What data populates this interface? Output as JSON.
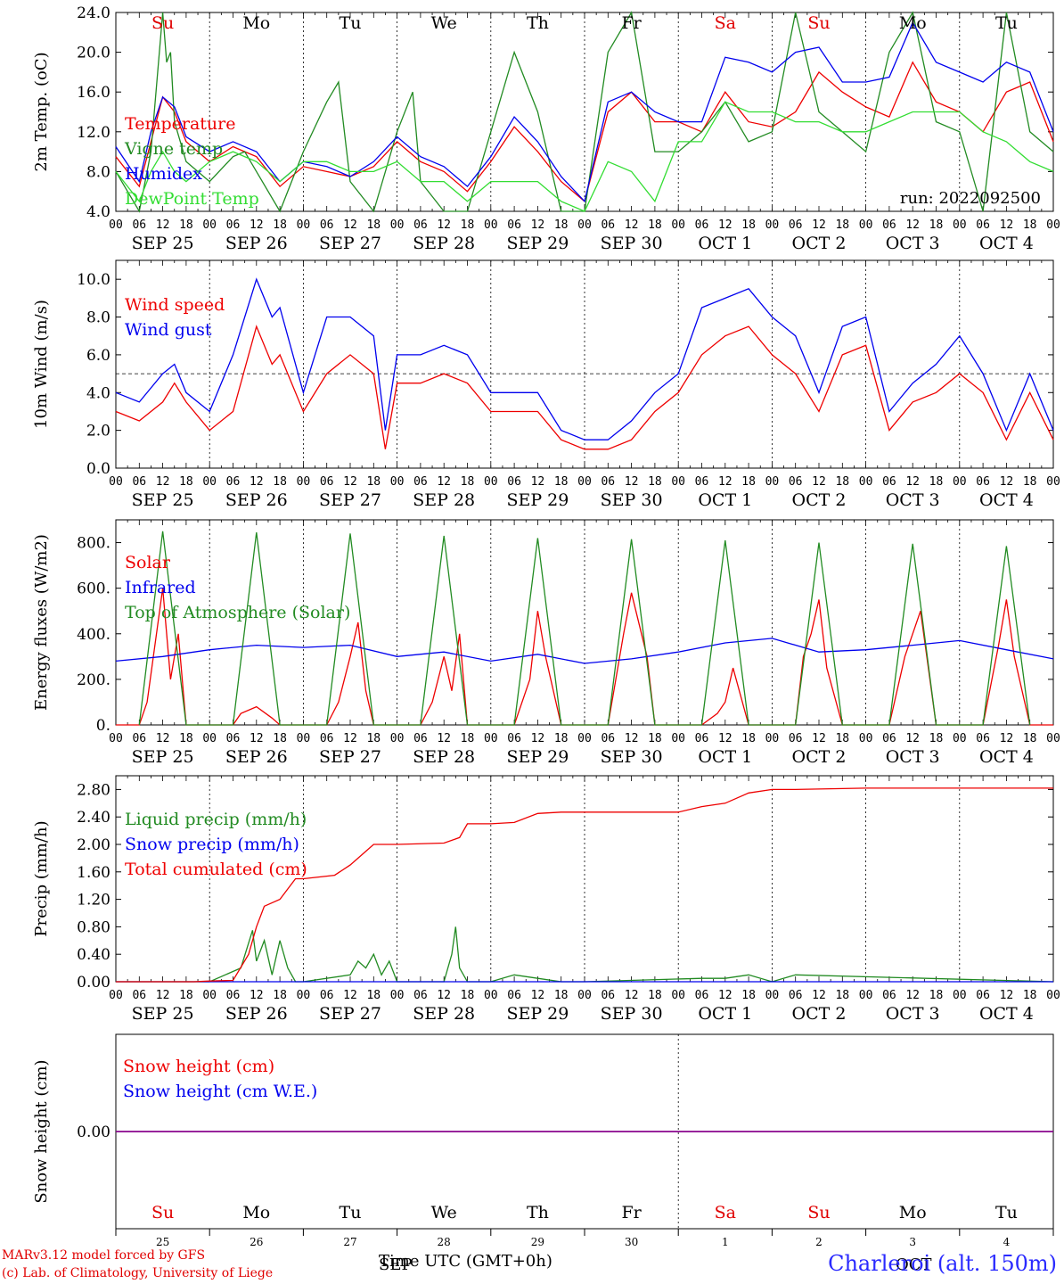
{
  "x_axis": {
    "hour_ticks": [
      "00",
      "06",
      "12",
      "18"
    ],
    "date_labels": [
      "SEP 25",
      "SEP 26",
      "SEP 27",
      "SEP 28",
      "SEP 29",
      "SEP 30",
      "OCT  1",
      "OCT  2",
      "OCT  3",
      "OCT  4"
    ],
    "weekdays": [
      "Su",
      "Mo",
      "Tu",
      "We",
      "Th",
      "Fr",
      "Sa",
      "Su",
      "Mo",
      "Tu"
    ],
    "weekday_colors": [
      "#e00000",
      "#000000",
      "#000000",
      "#000000",
      "#000000",
      "#000000",
      "#e00000",
      "#e00000",
      "#000000",
      "#000000"
    ],
    "bottom_day_numbers": [
      "25",
      "26",
      "27",
      "28",
      "29",
      "30",
      "1",
      "2",
      "3",
      "4"
    ],
    "bottom_months": [
      "SEP",
      "OCT"
    ],
    "title": "Time UTC (GMT+0h)"
  },
  "footer": {
    "line1": "MARv3.12 model forced by GFS",
    "line2": "(c) Lab. of Climatology, University of Liege",
    "station": "Charleroi (alt. 150m)"
  },
  "colors": {
    "red": "#ee0000",
    "blue": "#0000ee",
    "green": "#228b22",
    "lightgreen": "#33dd33",
    "purple": "#8b008b"
  },
  "chart_data": [
    {
      "type": "line",
      "ylabel": "2m Temp. (oC)",
      "ylim": [
        4,
        24
      ],
      "yticks": [
        "4.0",
        "8.0",
        "12.0",
        "16.0",
        "20.0",
        "24.0"
      ],
      "annotation": "run: 2022092500",
      "x_units": "hours since 2022-09-25 00 UTC",
      "series": [
        {
          "name": "Temperature",
          "color": "red",
          "x": [
            0,
            6,
            9,
            12,
            15,
            18,
            24,
            30,
            33,
            36,
            42,
            48,
            54,
            60,
            66,
            72,
            78,
            84,
            90,
            96,
            102,
            108,
            114,
            120,
            126,
            132,
            138,
            144,
            150,
            156,
            162,
            168,
            174,
            180,
            186,
            192,
            198,
            204,
            210,
            216,
            222,
            228,
            234,
            240
          ],
          "y": [
            9.5,
            6.5,
            11,
            15.5,
            14,
            11,
            9,
            10.5,
            10,
            9.5,
            6.5,
            8.5,
            8,
            7.5,
            8.5,
            11,
            9,
            8,
            6,
            9,
            12.5,
            10,
            7,
            5,
            14,
            16,
            13,
            13,
            12,
            16,
            13,
            12.5,
            14,
            18,
            16,
            14.5,
            13.5,
            19,
            15,
            14,
            12,
            16,
            17,
            11
          ]
        },
        {
          "name": "Vigne temp",
          "color": "green",
          "x": [
            0,
            6,
            9,
            12,
            13,
            14,
            15,
            18,
            24,
            30,
            33,
            36,
            42,
            48,
            54,
            57,
            60,
            66,
            72,
            76,
            78,
            84,
            90,
            96,
            102,
            108,
            114,
            120,
            126,
            132,
            138,
            144,
            150,
            156,
            162,
            168,
            174,
            180,
            186,
            192,
            198,
            204,
            210,
            216,
            222,
            228,
            234,
            240
          ],
          "y": [
            8,
            4,
            10,
            24,
            19,
            20,
            13,
            9,
            7,
            9.5,
            10,
            8,
            4,
            10,
            15,
            17,
            7,
            4,
            12,
            16,
            7,
            4,
            4,
            12,
            20,
            14,
            4,
            4,
            20,
            24,
            10,
            10,
            12,
            15,
            11,
            12,
            24,
            14,
            12,
            10,
            20,
            24,
            13,
            12,
            4,
            24,
            12,
            10
          ]
        },
        {
          "name": "Humidex",
          "color": "blue",
          "x": [
            0,
            6,
            9,
            12,
            15,
            18,
            24,
            30,
            36,
            42,
            48,
            54,
            60,
            66,
            72,
            78,
            84,
            90,
            96,
            102,
            108,
            114,
            120,
            126,
            132,
            138,
            144,
            150,
            156,
            162,
            168,
            174,
            180,
            186,
            192,
            198,
            204,
            210,
            216,
            222,
            228,
            234,
            240
          ],
          "y": [
            10.5,
            7,
            12,
            15.5,
            14.5,
            11.5,
            10,
            11,
            10,
            7,
            9,
            8.5,
            7.5,
            9,
            11.5,
            9.5,
            8.5,
            6.5,
            9.5,
            13.5,
            11,
            7.5,
            5,
            15,
            16,
            14,
            13,
            13,
            19.5,
            19,
            18,
            20,
            20.5,
            17,
            17,
            17.5,
            23,
            19,
            18,
            17,
            19,
            18,
            12
          ]
        },
        {
          "name": "DewPoint Temp",
          "color": "lightgreen",
          "x": [
            0,
            6,
            9,
            12,
            15,
            18,
            24,
            30,
            36,
            42,
            48,
            54,
            60,
            66,
            72,
            78,
            84,
            90,
            96,
            102,
            108,
            114,
            120,
            126,
            132,
            138,
            144,
            150,
            156,
            162,
            168,
            174,
            180,
            186,
            192,
            198,
            204,
            210,
            216,
            222,
            228,
            234,
            240
          ],
          "y": [
            8,
            5,
            8,
            10,
            8,
            7,
            9,
            10,
            9,
            7,
            9,
            9,
            8,
            8,
            9,
            7,
            7,
            5,
            7,
            7,
            7,
            5,
            4,
            9,
            8,
            5,
            11,
            11,
            15,
            14,
            14,
            13,
            13,
            12,
            12,
            13,
            14,
            14,
            14,
            12,
            11,
            9,
            8
          ]
        }
      ]
    },
    {
      "type": "line",
      "ylabel": "10m Wind (m/s)",
      "ylim": [
        0,
        11
      ],
      "yticks": [
        "0.0",
        "2.0",
        "4.0",
        "6.0",
        "8.0",
        "10.0"
      ],
      "reference_line": 5,
      "series": [
        {
          "name": "Wind speed",
          "color": "red",
          "x": [
            0,
            6,
            12,
            15,
            18,
            24,
            30,
            36,
            40,
            42,
            48,
            54,
            60,
            66,
            69,
            72,
            78,
            84,
            90,
            96,
            102,
            108,
            114,
            120,
            126,
            132,
            138,
            144,
            150,
            156,
            162,
            168,
            174,
            180,
            186,
            192,
            198,
            204,
            210,
            216,
            222,
            228,
            234,
            240
          ],
          "y": [
            3,
            2.5,
            3.5,
            4.5,
            3.5,
            2,
            3,
            7.5,
            5.5,
            6,
            3,
            5,
            6,
            5,
            1,
            4.5,
            4.5,
            5,
            4.5,
            3,
            3,
            3,
            1.5,
            1,
            1,
            1.5,
            3,
            4,
            6,
            7,
            7.5,
            6,
            5,
            3,
            6,
            6.5,
            2,
            3.5,
            4,
            5,
            4,
            1.5,
            4,
            1.5
          ]
        },
        {
          "name": "Wind gust",
          "color": "blue",
          "x": [
            0,
            6,
            12,
            15,
            18,
            24,
            30,
            36,
            40,
            42,
            48,
            54,
            60,
            66,
            69,
            72,
            78,
            84,
            90,
            96,
            102,
            108,
            114,
            120,
            126,
            132,
            138,
            144,
            150,
            156,
            162,
            168,
            174,
            180,
            186,
            192,
            198,
            204,
            210,
            216,
            222,
            228,
            234,
            240
          ],
          "y": [
            4,
            3.5,
            5,
            5.5,
            4,
            3,
            6,
            10,
            8,
            8.5,
            4,
            8,
            8,
            7,
            2,
            6,
            6,
            6.5,
            6,
            4,
            4,
            4,
            2,
            1.5,
            1.5,
            2.5,
            4,
            5,
            8.5,
            9,
            9.5,
            8,
            7,
            4,
            7.5,
            8,
            3,
            4.5,
            5.5,
            7,
            5,
            2,
            5,
            2
          ]
        }
      ]
    },
    {
      "type": "line",
      "ylabel": "Energy fluxes (W/m2)",
      "ylim": [
        0,
        900
      ],
      "yticks": [
        "0.",
        "200.",
        "400.",
        "600.",
        "800."
      ],
      "series": [
        {
          "name": "Solar",
          "color": "red",
          "x": [
            0,
            6,
            8,
            12,
            14,
            16,
            18,
            24,
            30,
            32,
            36,
            40,
            42,
            48,
            54,
            57,
            60,
            62,
            64,
            66,
            72,
            78,
            81,
            84,
            86,
            88,
            90,
            96,
            102,
            106,
            108,
            110,
            114,
            120,
            126,
            130,
            132,
            136,
            138,
            144,
            150,
            154,
            156,
            158,
            162,
            168,
            174,
            176,
            178,
            180,
            182,
            186,
            192,
            198,
            202,
            204,
            206,
            210,
            216,
            222,
            226,
            228,
            230,
            234,
            240
          ],
          "y": [
            0,
            0,
            100,
            600,
            200,
            400,
            0,
            0,
            0,
            50,
            80,
            30,
            0,
            0,
            0,
            100,
            300,
            450,
            150,
            0,
            0,
            0,
            100,
            300,
            150,
            400,
            0,
            0,
            0,
            200,
            500,
            300,
            0,
            0,
            0,
            400,
            580,
            300,
            0,
            0,
            0,
            50,
            100,
            250,
            0,
            0,
            0,
            300,
            400,
            550,
            250,
            0,
            0,
            0,
            300,
            400,
            500,
            0,
            0,
            0,
            350,
            550,
            300,
            0,
            0
          ]
        },
        {
          "name": "Infrared",
          "color": "blue",
          "x": [
            0,
            12,
            24,
            36,
            48,
            60,
            72,
            84,
            96,
            108,
            120,
            132,
            144,
            156,
            168,
            180,
            192,
            204,
            216,
            228,
            240
          ],
          "y": [
            280,
            300,
            330,
            350,
            340,
            350,
            300,
            320,
            280,
            310,
            270,
            290,
            320,
            360,
            380,
            320,
            330,
            350,
            370,
            330,
            290
          ]
        },
        {
          "name": "Top of Atmosphere (Solar)",
          "color": "green",
          "x": [
            6,
            12,
            18,
            30,
            36,
            42,
            54,
            60,
            66,
            78,
            84,
            90,
            102,
            108,
            114,
            126,
            132,
            138,
            150,
            156,
            162,
            174,
            180,
            186,
            198,
            204,
            210,
            222,
            228,
            234
          ],
          "y": [
            0,
            850,
            0,
            0,
            845,
            0,
            0,
            840,
            0,
            0,
            830,
            0,
            0,
            820,
            0,
            0,
            815,
            0,
            0,
            810,
            0,
            0,
            800,
            0,
            0,
            795,
            0,
            0,
            785,
            0
          ]
        }
      ]
    },
    {
      "type": "line",
      "ylabel": "Precip (mm/h)",
      "ylim": [
        0,
        3.0
      ],
      "yticks": [
        "0.00",
        "0.40",
        "0.80",
        "1.20",
        "1.60",
        "2.00",
        "2.40",
        "2.80"
      ],
      "series": [
        {
          "name": "Liquid precip (mm/h)",
          "color": "green",
          "x": [
            0,
            24,
            32,
            35,
            36,
            38,
            40,
            42,
            44,
            46,
            48,
            60,
            62,
            64,
            66,
            68,
            70,
            72,
            84,
            86,
            87,
            88,
            90,
            96,
            102,
            108,
            114,
            120,
            150,
            156,
            162,
            168,
            174,
            240
          ],
          "y": [
            0,
            0,
            0.2,
            0.75,
            0.3,
            0.6,
            0.1,
            0.6,
            0.2,
            0,
            0,
            0.1,
            0.3,
            0.2,
            0.4,
            0.1,
            0.3,
            0,
            0,
            0.4,
            0.8,
            0.2,
            0,
            0,
            0.1,
            0.05,
            0,
            0,
            0.05,
            0.05,
            0.1,
            0,
            0.1,
            0
          ]
        },
        {
          "name": "Snow precip (mm/h)",
          "color": "blue",
          "x": [
            0,
            240
          ],
          "y": [
            0,
            0
          ]
        },
        {
          "name": "Total cumulated (cm)",
          "color": "red",
          "x": [
            0,
            20,
            24,
            30,
            34,
            36,
            38,
            42,
            46,
            48,
            56,
            60,
            64,
            66,
            72,
            84,
            88,
            90,
            96,
            102,
            108,
            114,
            120,
            144,
            150,
            156,
            162,
            168,
            174,
            192,
            240
          ],
          "y": [
            0,
            0,
            0.01,
            0.02,
            0.4,
            0.8,
            1.1,
            1.2,
            1.5,
            1.5,
            1.55,
            1.7,
            1.9,
            2.0,
            2.0,
            2.02,
            2.1,
            2.3,
            2.3,
            2.32,
            2.45,
            2.47,
            2.47,
            2.47,
            2.55,
            2.6,
            2.75,
            2.8,
            2.8,
            2.82,
            2.82
          ]
        }
      ]
    },
    {
      "type": "line",
      "ylabel": "Snow height (cm)",
      "yticks": [
        "0.00"
      ],
      "series": [
        {
          "name": "Snow height (cm)",
          "color": "red",
          "x": [
            0,
            240
          ],
          "y": [
            0,
            0
          ]
        },
        {
          "name": "Snow height (cm W.E.)",
          "color": "blue",
          "x": [
            0,
            240
          ],
          "y": [
            0,
            0
          ]
        }
      ]
    }
  ]
}
